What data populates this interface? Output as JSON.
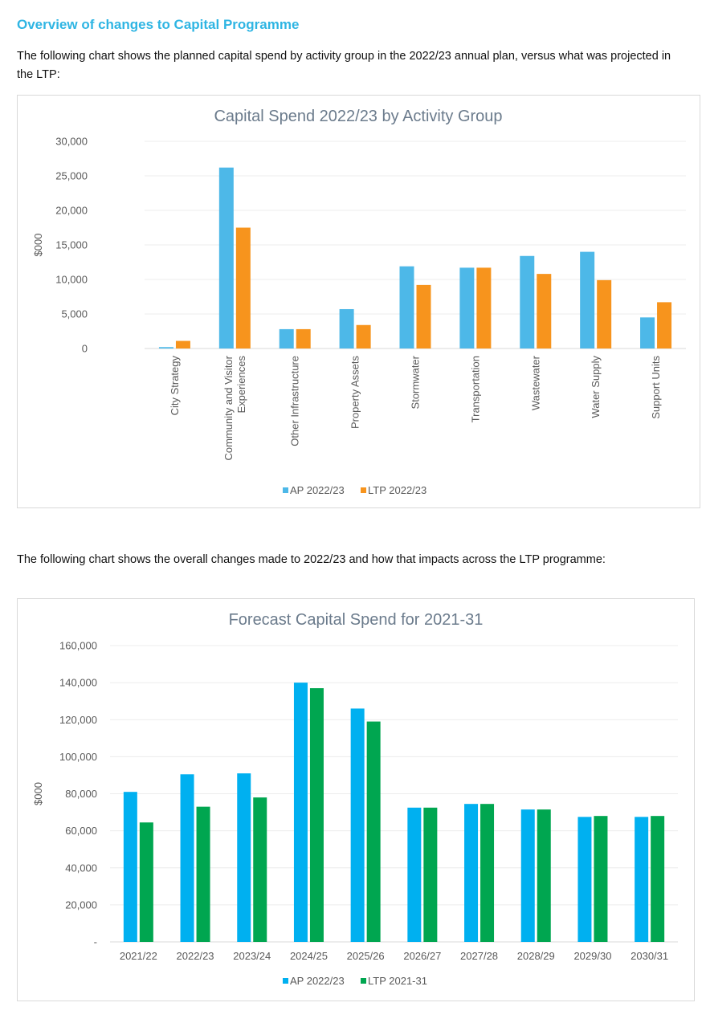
{
  "heading": "Overview of changes to Capital Programme",
  "para1": "The following chart shows the planned capital spend by activity group in the 2022/23 annual plan, versus what was projected in the LTP:",
  "para2": "The following chart shows the overall changes made to 2022/23 and how that impacts across the LTP programme:",
  "colors": {
    "heading": "#2FB5E3",
    "ap": "#4DB8E8",
    "ltp1": "#F7941D",
    "ap2": "#00B0F0",
    "ltp2": "#00A650",
    "text": "#595959",
    "title": "#6b7b8c"
  },
  "chart_data": [
    {
      "type": "bar",
      "title": "Capital Spend 2022/23 by Activity Group",
      "ylabel": "$000",
      "ylim": [
        0,
        30000
      ],
      "yticks": [
        "0",
        "5,000",
        "10,000",
        "15,000",
        "20,000",
        "25,000",
        "30,000"
      ],
      "categories": [
        "City Strategy",
        "Community and Visitor Experiences",
        "Other Infrastructure",
        "Property Assets",
        "Stormwater",
        "Transportation",
        "Wastewater",
        "Water Supply",
        "Support Units"
      ],
      "series": [
        {
          "name": "AP 2022/23",
          "values": [
            200,
            26200,
            2800,
            5700,
            11900,
            11700,
            13400,
            14000,
            4500
          ]
        },
        {
          "name": "LTP 2022/23",
          "values": [
            1100,
            17500,
            2800,
            3400,
            9200,
            11700,
            10800,
            9900,
            6700
          ]
        }
      ],
      "legend": "bottom",
      "grid": true
    },
    {
      "type": "bar",
      "title": "Forecast Capital Spend for 2021-31",
      "ylabel": "$000",
      "ylim": [
        0,
        160000
      ],
      "yticks": [
        "-",
        "20,000",
        "40,000",
        "60,000",
        "80,000",
        "100,000",
        "120,000",
        "140,000",
        "160,000"
      ],
      "categories": [
        "2021/22",
        "2022/23",
        "2023/24",
        "2024/25",
        "2025/26",
        "2026/27",
        "2027/28",
        "2028/29",
        "2029/30",
        "2030/31"
      ],
      "series": [
        {
          "name": "AP 2022/23",
          "values": [
            81000,
            90500,
            91000,
            140000,
            126000,
            72500,
            74500,
            71500,
            67500,
            67500
          ]
        },
        {
          "name": "LTP 2021-31",
          "values": [
            64500,
            73000,
            78000,
            137000,
            119000,
            72500,
            74500,
            71500,
            68000,
            68000
          ]
        }
      ],
      "legend": "bottom",
      "grid": true
    }
  ]
}
